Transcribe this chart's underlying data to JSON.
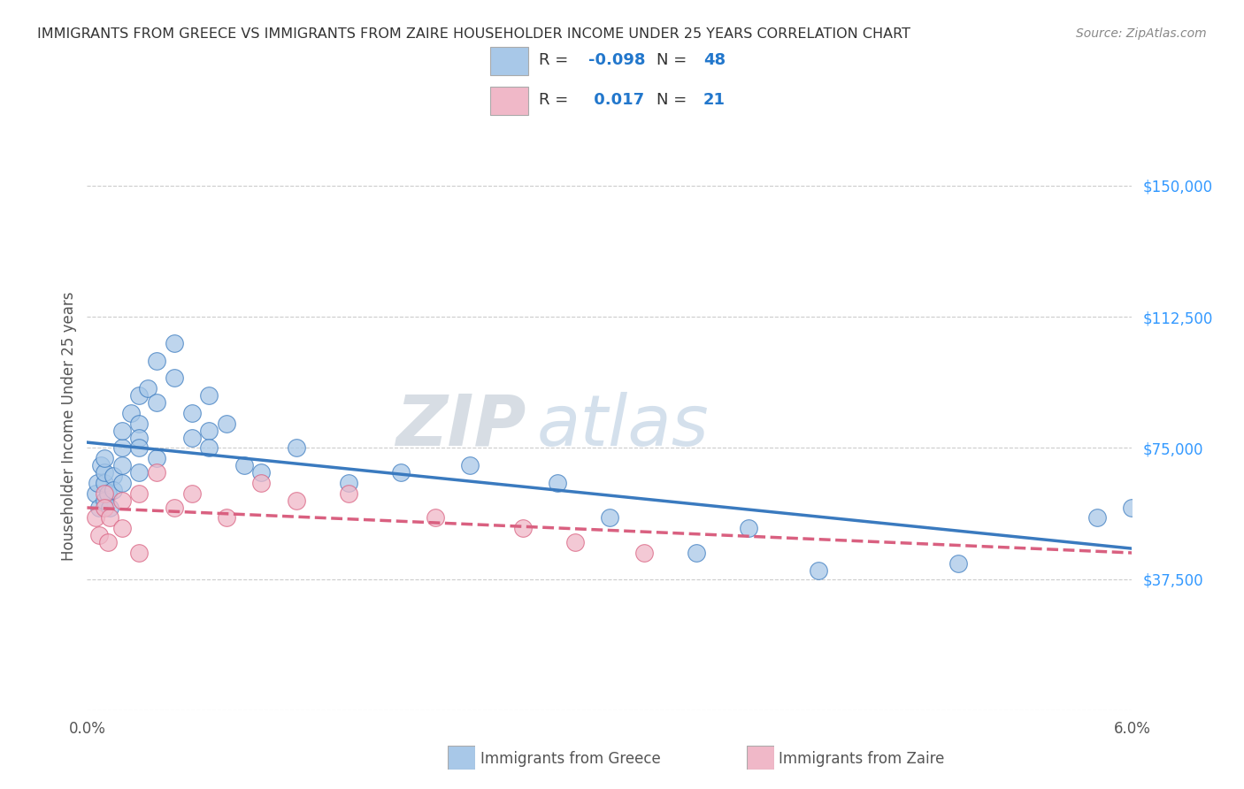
{
  "title": "IMMIGRANTS FROM GREECE VS IMMIGRANTS FROM ZAIRE HOUSEHOLDER INCOME UNDER 25 YEARS CORRELATION CHART",
  "source": "Source: ZipAtlas.com",
  "ylabel": "Householder Income Under 25 years",
  "xlim": [
    0.0,
    0.06
  ],
  "ylim": [
    0,
    162500
  ],
  "yticks": [
    0,
    37500,
    75000,
    112500,
    150000
  ],
  "ytick_labels": [
    "",
    "$37,500",
    "$75,000",
    "$112,500",
    "$150,000"
  ],
  "color_greece": "#a8c8e8",
  "color_zaire": "#f0b8c8",
  "color_line_greece": "#3a7abf",
  "color_line_zaire": "#d96080",
  "watermark_zip": "ZIP",
  "watermark_atlas": "atlas",
  "greece_x": [
    0.0005,
    0.0006,
    0.0007,
    0.0008,
    0.001,
    0.001,
    0.001,
    0.001,
    0.0012,
    0.0013,
    0.0015,
    0.0015,
    0.002,
    0.002,
    0.002,
    0.002,
    0.0025,
    0.003,
    0.003,
    0.003,
    0.003,
    0.003,
    0.0035,
    0.004,
    0.004,
    0.004,
    0.005,
    0.005,
    0.006,
    0.006,
    0.007,
    0.007,
    0.007,
    0.008,
    0.009,
    0.01,
    0.012,
    0.015,
    0.018,
    0.022,
    0.027,
    0.03,
    0.035,
    0.038,
    0.042,
    0.05,
    0.058,
    0.06
  ],
  "greece_y": [
    62000,
    65000,
    58000,
    70000,
    65000,
    60000,
    68000,
    72000,
    62000,
    58000,
    67000,
    63000,
    75000,
    80000,
    65000,
    70000,
    85000,
    90000,
    82000,
    78000,
    75000,
    68000,
    92000,
    100000,
    88000,
    72000,
    105000,
    95000,
    85000,
    78000,
    90000,
    80000,
    75000,
    82000,
    70000,
    68000,
    75000,
    65000,
    68000,
    70000,
    65000,
    55000,
    45000,
    52000,
    40000,
    42000,
    55000,
    58000
  ],
  "zaire_x": [
    0.0005,
    0.0007,
    0.001,
    0.001,
    0.0012,
    0.0013,
    0.002,
    0.002,
    0.003,
    0.003,
    0.004,
    0.005,
    0.006,
    0.008,
    0.01,
    0.012,
    0.015,
    0.02,
    0.025,
    0.028,
    0.032
  ],
  "zaire_y": [
    55000,
    50000,
    62000,
    58000,
    48000,
    55000,
    60000,
    52000,
    62000,
    45000,
    68000,
    58000,
    62000,
    55000,
    65000,
    60000,
    62000,
    55000,
    52000,
    48000,
    45000
  ],
  "grid_color": "#cccccc",
  "bottom_legend_greece": "Immigrants from Greece",
  "bottom_legend_zaire": "Immigrants from Zaire"
}
